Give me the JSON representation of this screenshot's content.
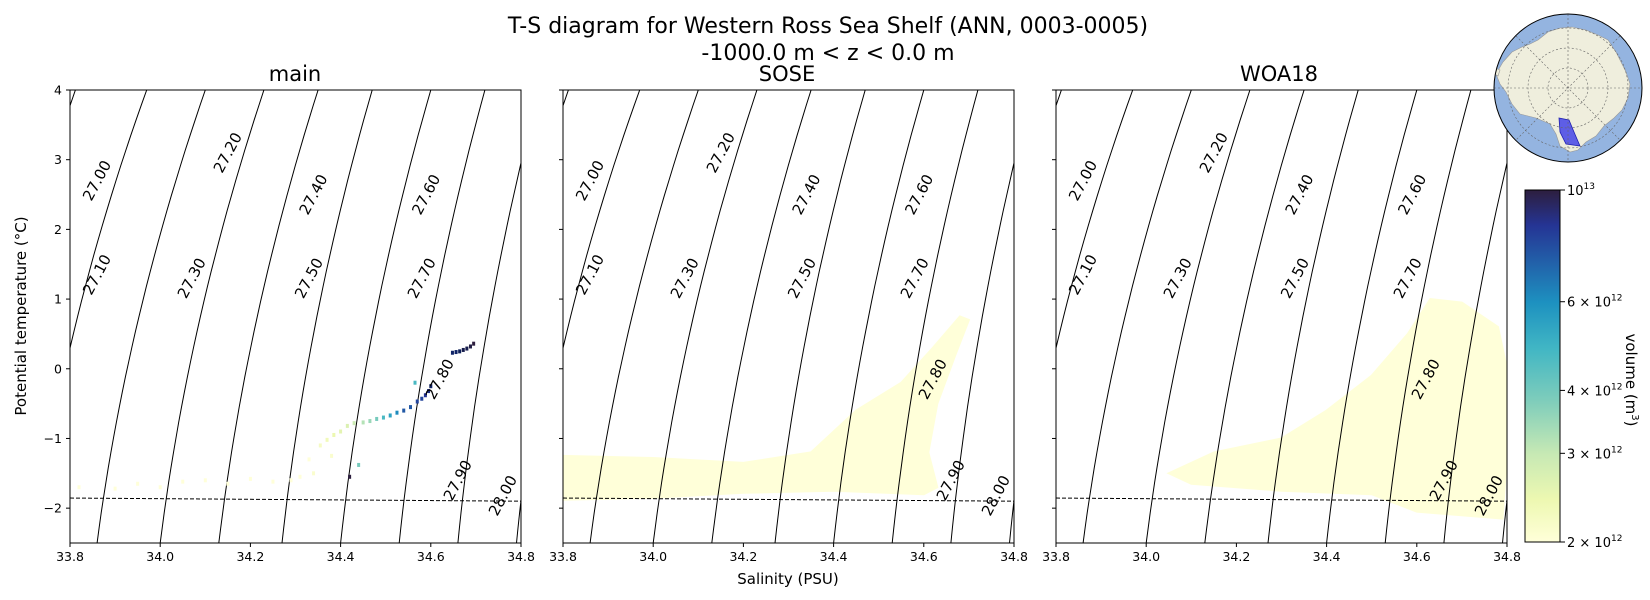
{
  "figure": {
    "title_line1": "T-S diagram for Western Ross Sea Shelf (ANN, 0003-0005)",
    "title_line2": "-1000.0 m < z < 0.0 m",
    "xlabel": "Salinity (PSU)",
    "ylabel": "Potential temperature (°C)"
  },
  "colorbar": {
    "label": "volume (m",
    "label_sup": "3",
    "label_end": ")",
    "range": [
      2000000000000.0,
      10000000000000.0
    ],
    "scale": "log",
    "colormap": [
      "#ffffd9",
      "#edf8b1",
      "#c7e9b4",
      "#7fcdbb",
      "#41b6c4",
      "#1d91c0",
      "#225ea8",
      "#253494",
      "#081d58",
      "#2d1e3e"
    ],
    "ticks": [
      {
        "base": "10",
        "exp": "13",
        "value": 10000000000000.0
      },
      {
        "base": "6 × 10",
        "exp": "12",
        "value": 6000000000000.0
      },
      {
        "base": "4 × 10",
        "exp": "12",
        "value": 4000000000000.0
      },
      {
        "base": "3 × 10",
        "exp": "12",
        "value": 3000000000000.0
      },
      {
        "base": "2 × 10",
        "exp": "12",
        "value": 2000000000000.0
      }
    ]
  },
  "inset_map": {
    "description_colors": {
      "ocean": "#94b4e0",
      "land": "#efeedd",
      "region": "#3a3ae8"
    }
  },
  "chart_data": [
    {
      "type": "heatmap",
      "title": "main",
      "xlim": [
        33.8,
        34.8
      ],
      "ylim": [
        -2.5,
        4
      ],
      "xticks": [
        "33.8",
        "34.0",
        "34.2",
        "34.4",
        "34.6",
        "34.8"
      ],
      "yticks": [
        "−2",
        "−1",
        "0",
        "1",
        "2",
        "3",
        "4"
      ],
      "freezing_line": {
        "x": [
          33.8,
          34.8
        ],
        "y": [
          -1.855,
          -1.9
        ]
      },
      "density_contours": [
        "27.00",
        "27.10",
        "27.20",
        "27.30",
        "27.40",
        "27.50",
        "27.60",
        "27.70",
        "27.80",
        "27.90",
        "28.00"
      ],
      "points": [
        {
          "s": 34.695,
          "t": 0.36,
          "v": 10000000000000.0
        },
        {
          "s": 34.688,
          "t": 0.32,
          "v": 9500000000000.0
        },
        {
          "s": 34.68,
          "t": 0.29,
          "v": 9000000000000.0
        },
        {
          "s": 34.672,
          "t": 0.27,
          "v": 9000000000000.0
        },
        {
          "s": 34.664,
          "t": 0.25,
          "v": 8500000000000.0
        },
        {
          "s": 34.656,
          "t": 0.24,
          "v": 8000000000000.0
        },
        {
          "s": 34.648,
          "t": 0.23,
          "v": 8000000000000.0
        },
        {
          "s": 34.6,
          "t": -0.25,
          "v": 8000000000000.0
        },
        {
          "s": 34.595,
          "t": -0.32,
          "v": 7500000000000.0
        },
        {
          "s": 34.588,
          "t": -0.38,
          "v": 7000000000000.0
        },
        {
          "s": 34.58,
          "t": -0.43,
          "v": 6500000000000.0
        },
        {
          "s": 34.57,
          "t": -0.47,
          "v": 6500000000000.0
        },
        {
          "s": 34.565,
          "t": -0.2,
          "v": 4000000000000.0
        },
        {
          "s": 34.555,
          "t": -0.55,
          "v": 6000000000000.0
        },
        {
          "s": 34.54,
          "t": -0.6,
          "v": 6000000000000.0
        },
        {
          "s": 34.525,
          "t": -0.63,
          "v": 5000000000000.0
        },
        {
          "s": 34.51,
          "t": -0.67,
          "v": 4500000000000.0
        },
        {
          "s": 34.495,
          "t": -0.7,
          "v": 4000000000000.0
        },
        {
          "s": 34.48,
          "t": -0.72,
          "v": 3500000000000.0
        },
        {
          "s": 34.465,
          "t": -0.75,
          "v": 3200000000000.0
        },
        {
          "s": 34.45,
          "t": -0.77,
          "v": 3000000000000.0
        },
        {
          "s": 34.43,
          "t": -0.78,
          "v": 2800000000000.0
        },
        {
          "s": 34.415,
          "t": -0.82,
          "v": 2600000000000.0
        },
        {
          "s": 34.4,
          "t": -0.9,
          "v": 2500000000000.0
        },
        {
          "s": 34.385,
          "t": -0.95,
          "v": 2400000000000.0
        },
        {
          "s": 34.37,
          "t": -1.02,
          "v": 2300000000000.0
        },
        {
          "s": 34.355,
          "t": -1.1,
          "v": 2200000000000.0
        },
        {
          "s": 34.44,
          "t": -1.38,
          "v": 3500000000000.0
        },
        {
          "s": 34.42,
          "t": -1.55,
          "v": 10000000000000.0
        },
        {
          "s": 34.34,
          "t": -1.5,
          "v": 2100000000000.0
        },
        {
          "s": 34.31,
          "t": -1.55,
          "v": 2000000000000.0
        },
        {
          "s": 34.29,
          "t": -1.6,
          "v": 2000000000000.0
        },
        {
          "s": 34.25,
          "t": -1.62,
          "v": 2000000000000.0
        },
        {
          "s": 34.2,
          "t": -1.58,
          "v": 2000000000000.0
        },
        {
          "s": 34.15,
          "t": -1.65,
          "v": 2000000000000.0
        },
        {
          "s": 34.1,
          "t": -1.6,
          "v": 2000000000000.0
        },
        {
          "s": 34.05,
          "t": -1.62,
          "v": 2000000000000.0
        },
        {
          "s": 34.0,
          "t": -1.7,
          "v": 2000000000000.0
        },
        {
          "s": 33.95,
          "t": -1.65,
          "v": 2000000000000.0
        },
        {
          "s": 33.9,
          "t": -1.72,
          "v": 2000000000000.0
        },
        {
          "s": 33.82,
          "t": -1.7,
          "v": 2000000000000.0
        },
        {
          "s": 34.38,
          "t": -1.25,
          "v": 2100000000000.0
        },
        {
          "s": 34.33,
          "t": -1.3,
          "v": 2000000000000.0
        }
      ]
    },
    {
      "type": "heatmap",
      "title": "SOSE",
      "xlim": [
        33.8,
        34.8
      ],
      "ylim": [
        -2.5,
        4
      ],
      "xticks": [
        "33.8",
        "34.0",
        "34.2",
        "34.4",
        "34.6",
        "34.8"
      ],
      "freezing_line": {
        "x": [
          33.8,
          34.8
        ],
        "y": [
          -1.855,
          -1.9
        ]
      },
      "density_contours": [
        "27.00",
        "27.10",
        "27.20",
        "27.30",
        "27.40",
        "27.50",
        "27.60",
        "27.70",
        "27.80",
        "27.90",
        "28.00"
      ],
      "blob": {
        "value": 2000000000000.0,
        "outline": [
          [
            33.8,
            -1.25
          ],
          [
            34.0,
            -1.28
          ],
          [
            34.2,
            -1.35
          ],
          [
            34.35,
            -1.2
          ],
          [
            34.45,
            -0.6
          ],
          [
            34.55,
            -0.2
          ],
          [
            34.62,
            0.3
          ],
          [
            34.68,
            0.75
          ],
          [
            34.7,
            0.7
          ],
          [
            34.67,
            0.2
          ],
          [
            34.63,
            -0.5
          ],
          [
            34.61,
            -1.2
          ],
          [
            34.63,
            -1.7
          ],
          [
            34.6,
            -1.8
          ],
          [
            34.4,
            -1.75
          ],
          [
            34.2,
            -1.78
          ],
          [
            34.0,
            -1.85
          ],
          [
            33.8,
            -1.88
          ]
        ]
      }
    },
    {
      "type": "heatmap",
      "title": "WOA18",
      "xlim": [
        33.8,
        34.8
      ],
      "ylim": [
        -2.5,
        4
      ],
      "xticks": [
        "33.8",
        "34.0",
        "34.2",
        "34.4",
        "34.6",
        "34.8"
      ],
      "freezing_line": {
        "x": [
          33.8,
          34.8
        ],
        "y": [
          -1.855,
          -1.9
        ]
      },
      "density_contours": [
        "27.00",
        "27.10",
        "27.20",
        "27.30",
        "27.40",
        "27.50",
        "27.60",
        "27.70",
        "27.80",
        "27.90",
        "28.00"
      ],
      "blob": {
        "value": 2000000000000.0,
        "outline": [
          [
            34.05,
            -1.5
          ],
          [
            34.15,
            -1.2
          ],
          [
            34.3,
            -1.0
          ],
          [
            34.4,
            -0.6
          ],
          [
            34.5,
            -0.1
          ],
          [
            34.58,
            0.5
          ],
          [
            34.63,
            1.0
          ],
          [
            34.7,
            0.95
          ],
          [
            34.78,
            0.6
          ],
          [
            34.8,
            0.0
          ],
          [
            34.8,
            -1.2
          ],
          [
            34.79,
            -2.15
          ],
          [
            34.6,
            -2.05
          ],
          [
            34.5,
            -1.8
          ],
          [
            34.3,
            -1.75
          ],
          [
            34.1,
            -1.65
          ]
        ]
      }
    }
  ]
}
